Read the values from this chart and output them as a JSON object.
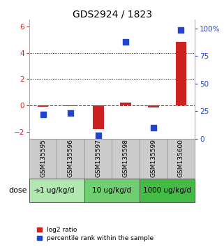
{
  "title": "GDS2924 / 1823",
  "samples": [
    "GSM135595",
    "GSM135596",
    "GSM135597",
    "GSM135598",
    "GSM135599",
    "GSM135600"
  ],
  "log2_ratio": [
    -0.1,
    -0.05,
    -1.8,
    0.25,
    -0.15,
    4.8
  ],
  "percentile_rank": [
    22,
    23,
    3,
    88,
    10,
    99
  ],
  "doses": [
    {
      "label": "1 ug/kg/d",
      "start": 0,
      "end": 1,
      "color": "#b0e8b0"
    },
    {
      "label": "10 ug/kg/d",
      "start": 2,
      "end": 3,
      "color": "#6fce6f"
    },
    {
      "label": "1000 ug/kg/d",
      "start": 4,
      "end": 5,
      "color": "#44bb44"
    }
  ],
  "ylim_left": [
    -2.5,
    6.5
  ],
  "ylim_right": [
    0,
    108.0
  ],
  "yticks_left": [
    -2,
    0,
    2,
    4,
    6
  ],
  "yticks_right": [
    0,
    25,
    50,
    75,
    100
  ],
  "ytick_labels_right": [
    "0",
    "25",
    "50",
    "75",
    "100%"
  ],
  "hline_y": 0,
  "dotted_lines": [
    2,
    4
  ],
  "bar_color": "#cc2222",
  "dot_color": "#2244cc",
  "bar_width": 0.4,
  "dot_size": 28,
  "left_tick_color": "#cc2222",
  "right_tick_color": "#2244cc",
  "legend_items": [
    {
      "color": "#cc2222",
      "label": "log2 ratio"
    },
    {
      "color": "#2244cc",
      "label": "percentile rank within the sample"
    }
  ],
  "dose_label": "dose",
  "sample_box_color": "#cccccc",
  "sample_box_edge_color": "#999999",
  "dose_box_edge_color": "#555555"
}
